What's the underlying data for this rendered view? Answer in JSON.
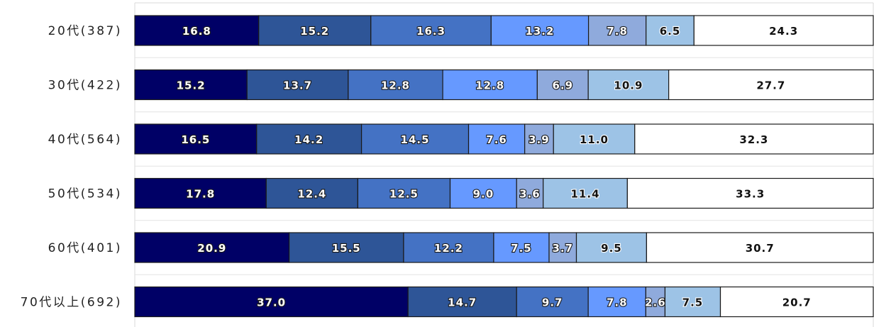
{
  "chart_data": {
    "type": "bar",
    "orientation": "horizontal",
    "stacked": true,
    "percent_stacked": true,
    "categories": [
      "20代(387)",
      "30代(422)",
      "40代(564)",
      "50代(534)",
      "60代(401)",
      "70代以上(692)"
    ],
    "series": [
      {
        "values": [
          16.8,
          15.2,
          16.5,
          17.8,
          20.9,
          37.0
        ],
        "color": "#000066"
      },
      {
        "values": [
          15.2,
          13.7,
          14.2,
          12.4,
          15.5,
          14.7
        ],
        "color": "#2e5597"
      },
      {
        "values": [
          16.3,
          12.8,
          14.5,
          12.5,
          12.2,
          9.7
        ],
        "color": "#4472c4"
      },
      {
        "values": [
          13.2,
          12.8,
          7.6,
          9.0,
          7.5,
          7.8
        ],
        "color": "#6699ff"
      },
      {
        "values": [
          7.8,
          6.9,
          3.9,
          3.6,
          3.7,
          2.6
        ],
        "color": "#8faadc"
      },
      {
        "values": [
          6.5,
          10.9,
          11.0,
          11.4,
          9.5,
          7.5
        ],
        "color": "#9dc3e6"
      },
      {
        "values": [
          24.3,
          27.7,
          32.3,
          33.3,
          30.7,
          20.7
        ],
        "color": "#ffffff"
      }
    ],
    "xlim": [
      0,
      100
    ],
    "data_labels": true,
    "legend": "none",
    "grid": true
  }
}
